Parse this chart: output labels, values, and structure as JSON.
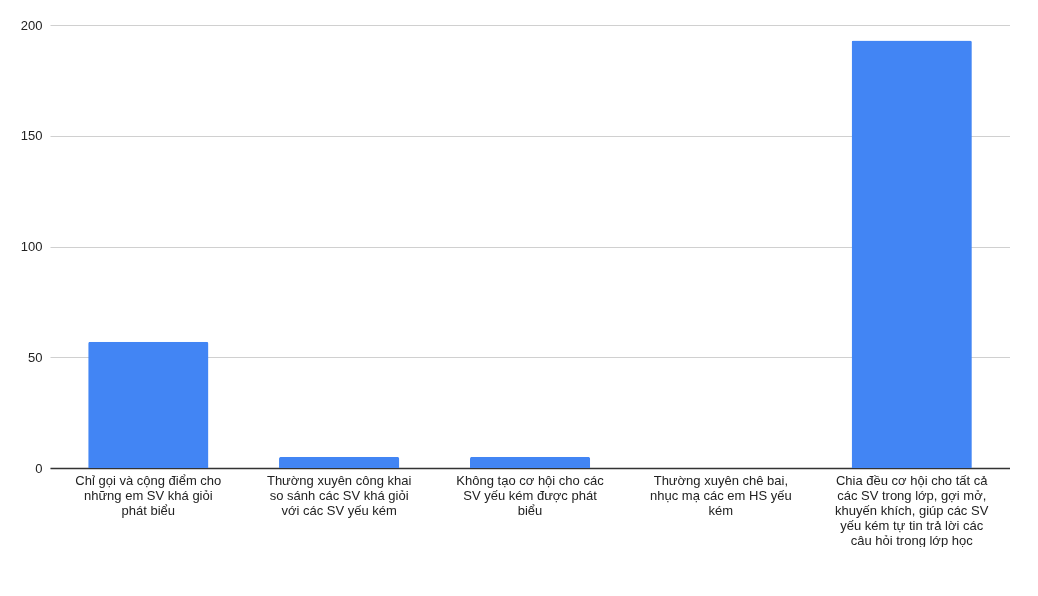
{
  "chart_data": {
    "type": "bar",
    "categories": [
      "Chỉ gọi và cộng điểm cho những em SV khá giỏi phát biểu",
      "Thường xuyên công khai so sánh các SV khá giỏi với các SV yếu kém",
      "Không tạo cơ hội cho các SV yếu kém được phát biểu",
      "Thường xuyên chê bai, nhục mạ các em HS yếu kém",
      "Chia đều cơ hội cho tất cả các SV trong lớp, gợi mở, khuyến khích, giúp các SV yếu kém tự tin trả lời các câu hỏi trong lớp học"
    ],
    "values": [
      57,
      5,
      5,
      0,
      193
    ],
    "color": "#4285f4",
    "ylim": [
      0,
      200
    ],
    "yticks": [
      0,
      50,
      100,
      150,
      200
    ],
    "grid": "y"
  }
}
